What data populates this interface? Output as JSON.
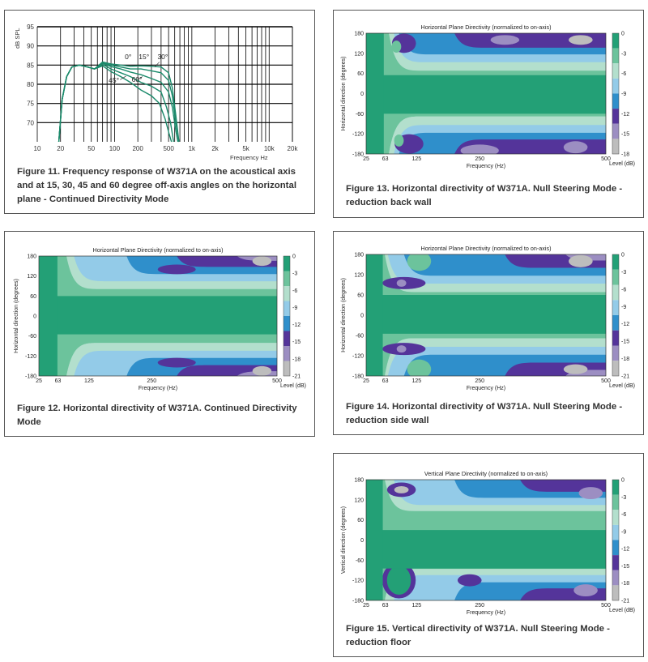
{
  "chart_data": [
    {
      "id": "fig11",
      "type": "line",
      "caption": "Figure 11. Frequency response of W371A on the acoustical axis and at 15, 30, 45 and 60 degree off-axis angles on the horizontal plane - Continued Directivity Mode",
      "ylabel": "dB SPL",
      "xlabel": "Frequency Hz",
      "xscale": "log",
      "xlim": [
        10,
        20000
      ],
      "ylim": [
        65,
        95
      ],
      "grid": true,
      "color": "#1b8a6b",
      "yticks": [
        70,
        75,
        80,
        85,
        90,
        95
      ],
      "xticks": [
        {
          "v": 10,
          "label": "10"
        },
        {
          "v": 20,
          "label": "20"
        },
        {
          "v": 50,
          "label": "50"
        },
        {
          "v": 100,
          "label": "100"
        },
        {
          "v": 200,
          "label": "200"
        },
        {
          "v": 500,
          "label": "500"
        },
        {
          "v": 1000,
          "label": "1k"
        },
        {
          "v": 2000,
          "label": "2k"
        },
        {
          "v": 5000,
          "label": "5k"
        },
        {
          "v": 10000,
          "label": "10k"
        },
        {
          "v": 20000,
          "label": "20k"
        }
      ],
      "annotations": [
        "0°",
        "15°",
        "30°",
        "45°",
        "60°"
      ],
      "series": [
        {
          "points": [
            [
              19,
              65
            ],
            [
              21,
              76
            ],
            [
              24,
              82
            ],
            [
              28,
              84.5
            ],
            [
              35,
              85
            ],
            [
              45,
              84.5
            ],
            [
              55,
              84
            ],
            [
              70,
              85.8
            ],
            [
              90,
              85.3
            ],
            [
              120,
              85
            ],
            [
              160,
              84.7
            ],
            [
              220,
              84.8
            ],
            [
              300,
              84.7
            ],
            [
              400,
              84.5
            ],
            [
              500,
              83
            ],
            [
              560,
              79
            ],
            [
              620,
              72
            ],
            [
              680,
              65
            ]
          ]
        },
        {
          "points": [
            [
              19,
              65
            ],
            [
              21,
              76
            ],
            [
              24,
              82
            ],
            [
              28,
              84.5
            ],
            [
              35,
              85
            ],
            [
              45,
              84.5
            ],
            [
              55,
              84
            ],
            [
              70,
              85.6
            ],
            [
              90,
              85
            ],
            [
              120,
              84.5
            ],
            [
              160,
              84
            ],
            [
              220,
              84
            ],
            [
              300,
              83.5
            ],
            [
              400,
              83
            ],
            [
              500,
              81
            ],
            [
              560,
              77
            ],
            [
              620,
              70
            ],
            [
              680,
              65
            ]
          ]
        },
        {
          "points": [
            [
              19,
              65
            ],
            [
              21,
              76
            ],
            [
              24,
              82
            ],
            [
              28,
              84.5
            ],
            [
              35,
              85
            ],
            [
              45,
              84.5
            ],
            [
              55,
              84
            ],
            [
              70,
              85.5
            ],
            [
              90,
              84.6
            ],
            [
              120,
              84
            ],
            [
              160,
              83.2
            ],
            [
              220,
              82.5
            ],
            [
              300,
              81.5
            ],
            [
              400,
              80.5
            ],
            [
              500,
              78
            ],
            [
              560,
              74
            ],
            [
              620,
              68
            ],
            [
              660,
              65
            ]
          ]
        },
        {
          "points": [
            [
              19,
              65
            ],
            [
              21,
              76
            ],
            [
              24,
              82
            ],
            [
              28,
              84.5
            ],
            [
              35,
              85
            ],
            [
              45,
              84.5
            ],
            [
              55,
              84
            ],
            [
              70,
              85.2
            ],
            [
              90,
              84
            ],
            [
              120,
              83
            ],
            [
              160,
              82
            ],
            [
              220,
              80.5
            ],
            [
              300,
              79.5
            ],
            [
              400,
              78
            ],
            [
              470,
              74
            ],
            [
              530,
              70
            ],
            [
              580,
              65
            ]
          ]
        },
        {
          "points": [
            [
              19,
              65
            ],
            [
              21,
              76
            ],
            [
              24,
              82
            ],
            [
              28,
              84.5
            ],
            [
              35,
              85
            ],
            [
              45,
              84.5
            ],
            [
              55,
              84
            ],
            [
              70,
              84.8
            ],
            [
              90,
              83.3
            ],
            [
              120,
              82
            ],
            [
              160,
              80.5
            ],
            [
              220,
              78.5
            ],
            [
              300,
              77
            ],
            [
              380,
              75
            ],
            [
              450,
              71
            ],
            [
              510,
              67
            ],
            [
              545,
              65
            ]
          ]
        }
      ]
    },
    {
      "id": "fig12",
      "type": "heatmap",
      "title": "Horizontal Plane Directivity (normalized to on-axis)",
      "caption": "Figure 12. Horizontal directivity of W371A. Continued Directivity Mode",
      "xlabel": "Frequency (Hz)",
      "ylabel": "Horizontal direction (degrees)",
      "xticks": [
        25,
        63,
        125,
        250,
        500
      ],
      "yticks": [
        180,
        120,
        60,
        0,
        -60,
        -120,
        -180
      ],
      "colorbar_title": "Level (dB)",
      "colorbar_ticks": [
        "0",
        "-3",
        "-6",
        "-9",
        "-12",
        "-15",
        "-18",
        "-21"
      ]
    },
    {
      "id": "fig13",
      "type": "heatmap",
      "title": "Horizontal Plane Directivity (normalized to on-axis)",
      "caption": "Figure 13. Horizontal directivity of W371A. Null Steering Mode - reduction back wall",
      "xlabel": "Frequency (Hz)",
      "ylabel": "Horizontal direction (degrees)",
      "xticks": [
        25,
        63,
        125,
        250,
        500
      ],
      "yticks": [
        180,
        120,
        60,
        0,
        -60,
        -120,
        -180
      ],
      "colorbar_title": "Level (dB)",
      "colorbar_ticks": [
        "0",
        "-3",
        "-6",
        "-9",
        "-12",
        "-15",
        "-18"
      ]
    },
    {
      "id": "fig14",
      "type": "heatmap",
      "title": "Horizontal Plane Directivity (normalized to on-axis)",
      "caption": "Figure 14. Horizontal directivity of W371A. Null Steering Mode - reduction side wall",
      "xlabel": "Frequency (Hz)",
      "ylabel": "Horizontal direction (degrees)",
      "xticks": [
        25,
        63,
        125,
        250,
        500
      ],
      "yticks": [
        180,
        120,
        60,
        0,
        -60,
        -120,
        -180
      ],
      "colorbar_title": "Level (dB)",
      "colorbar_ticks": [
        "0",
        "-3",
        "-6",
        "-9",
        "-12",
        "-15",
        "-18",
        "-21"
      ]
    },
    {
      "id": "fig15",
      "type": "heatmap",
      "title": "Vertical Plane Directivity (normalized to on-axis)",
      "caption": "Figure 15. Vertical directivity of W371A. Null Steering Mode - reduction floor",
      "xlabel": "Frequency (Hz)",
      "ylabel": "Vertical direction (degrees)",
      "xticks": [
        25,
        63,
        125,
        250,
        500
      ],
      "yticks": [
        180,
        120,
        60,
        0,
        -60,
        -120,
        -180
      ],
      "colorbar_title": "Level (dB)",
      "colorbar_ticks": [
        "0",
        "-3",
        "-6",
        "-9",
        "-12",
        "-15",
        "-18",
        "-21"
      ]
    }
  ],
  "palette": [
    "#23a076",
    "#6cc39c",
    "#b3dfcd",
    "#93cbe8",
    "#2f8fcb",
    "#54349a",
    "#9c8ec2",
    "#bdbdbd"
  ]
}
